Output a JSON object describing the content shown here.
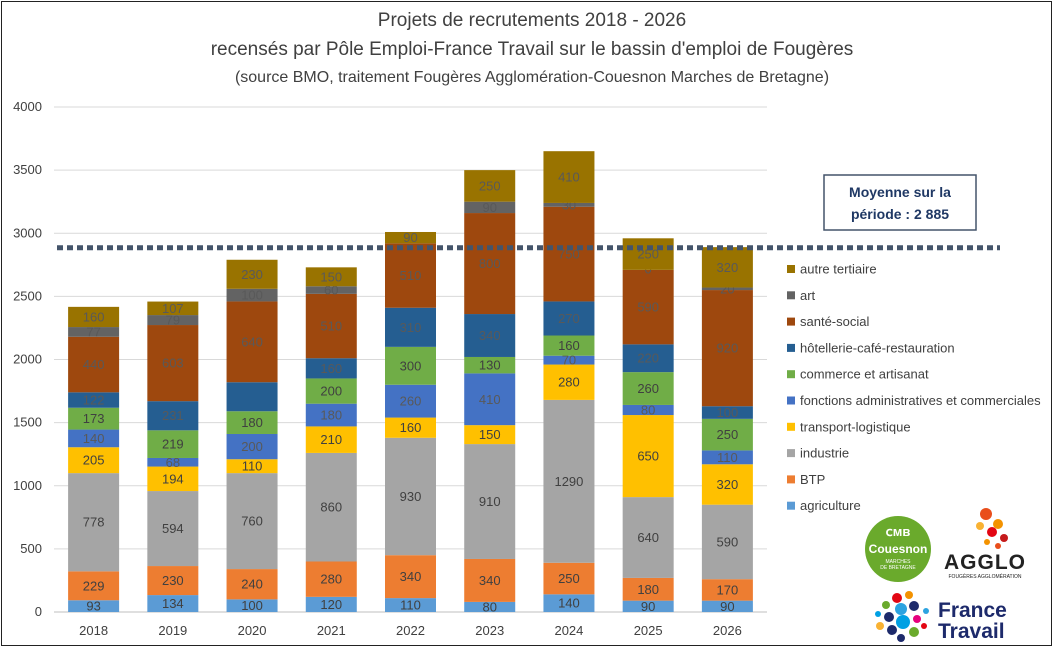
{
  "chart_data": {
    "type": "bar",
    "stacked": true,
    "title": "Projets de recrutements 2018 - 2026",
    "subtitle": "recensés par Pôle Emploi-France Travail sur le bassin d'emploi de Fougères",
    "source": "(source BMO, traitement Fougères Agglomération-Couesnon Marches de Bretagne)",
    "categories": [
      "2018",
      "2019",
      "2020",
      "2021",
      "2022",
      "2023",
      "2024",
      "2025",
      "2026"
    ],
    "ylim": [
      0,
      4000
    ],
    "yticks": [
      "0",
      "500",
      "1000",
      "1500",
      "2000",
      "2500",
      "3000",
      "3500",
      "4000"
    ],
    "grid": true,
    "legend_position": "right",
    "series": [
      {
        "name": "agriculture",
        "color": "#5b9bd5",
        "values": [
          93,
          134,
          100,
          120,
          110,
          80,
          140,
          90,
          90
        ],
        "labels": [
          "93",
          "134",
          "100",
          "120",
          "110",
          "80",
          "140",
          "90",
          "90"
        ]
      },
      {
        "name": "BTP",
        "color": "#ed7d31",
        "values": [
          229,
          230,
          240,
          280,
          340,
          340,
          250,
          180,
          170
        ],
        "labels": [
          "229",
          "230",
          "240",
          "280",
          "340",
          "340",
          "250",
          "180",
          "170"
        ]
      },
      {
        "name": "industrie",
        "color": "#a5a5a5",
        "values": [
          778,
          594,
          760,
          860,
          930,
          910,
          1290,
          640,
          590
        ],
        "labels": [
          "778",
          "594",
          "760",
          "860",
          "930",
          "910",
          "1290",
          "640",
          "590"
        ]
      },
      {
        "name": "transport-logistique",
        "color": "#ffc000",
        "values": [
          205,
          194,
          110,
          210,
          160,
          150,
          280,
          650,
          320
        ],
        "labels": [
          "205",
          "194",
          "110",
          "210",
          "160",
          "150",
          "280",
          "650",
          "320"
        ]
      },
      {
        "name": "fonctions administratives et commerciales",
        "color": "#4472c4",
        "values": [
          140,
          68,
          200,
          180,
          260,
          410,
          70,
          80,
          110
        ],
        "labels": [
          "140",
          "68",
          "200",
          "180",
          "260",
          "410",
          "70",
          "80",
          "110"
        ]
      },
      {
        "name": "commerce et artisanat",
        "color": "#70ad47",
        "values": [
          173,
          219,
          180,
          200,
          300,
          130,
          160,
          260,
          250
        ],
        "labels": [
          "173",
          "219",
          "180",
          "200",
          "300",
          "130",
          "160",
          "260",
          "250"
        ]
      },
      {
        "name": "hôtellerie-café-restauration",
        "color": "#255e91",
        "values": [
          122,
          231,
          230,
          160,
          310,
          340,
          270,
          220,
          100
        ],
        "labels": [
          "122",
          "231",
          "",
          "160",
          "310",
          "340",
          "270",
          "220",
          "100"
        ]
      },
      {
        "name": "santé-social",
        "color": "#9e480e",
        "values": [
          440,
          603,
          640,
          510,
          510,
          800,
          750,
          590,
          920
        ],
        "labels": [
          "440",
          "603",
          "640",
          "510",
          "510",
          "800",
          "750",
          "590",
          "920"
        ]
      },
      {
        "name": "art",
        "color": "#636363",
        "values": [
          77,
          79,
          100,
          60,
          0,
          90,
          30,
          0,
          20
        ],
        "labels": [
          "77",
          "79",
          "100",
          "60",
          "",
          "90",
          "30",
          "0",
          "20"
        ]
      },
      {
        "name": "autre tertiaire",
        "color": "#997300",
        "values": [
          160,
          107,
          230,
          150,
          90,
          250,
          410,
          250,
          320
        ],
        "labels": [
          "160",
          "107",
          "230",
          "150",
          "90",
          "250",
          "410",
          "250",
          "320"
        ]
      }
    ],
    "legend_order": [
      "autre tertiaire",
      "art",
      "santé-social",
      "hôtellerie-café-restauration",
      "commerce et artisanat",
      "fonctions administratives et commerciales",
      "transport-logistique",
      "industrie",
      "BTP",
      "agriculture"
    ],
    "average": {
      "value": 2885,
      "label_line1": "Moyenne sur la",
      "label_line2": "période : 2 885",
      "color": "#44546a"
    }
  },
  "logos": {
    "couesnon": {
      "name": "Couesnon",
      "sub1": "MARCHES",
      "sub2": "DE BRETAGNE",
      "color": "#6aaa2c"
    },
    "agglo": {
      "name": "AGGLO",
      "sub": "FOUGÈRES AGGLOMÉRATION"
    },
    "france_travail": {
      "line1": "France",
      "line2": "Travail",
      "color": "#1d2a6b"
    }
  }
}
